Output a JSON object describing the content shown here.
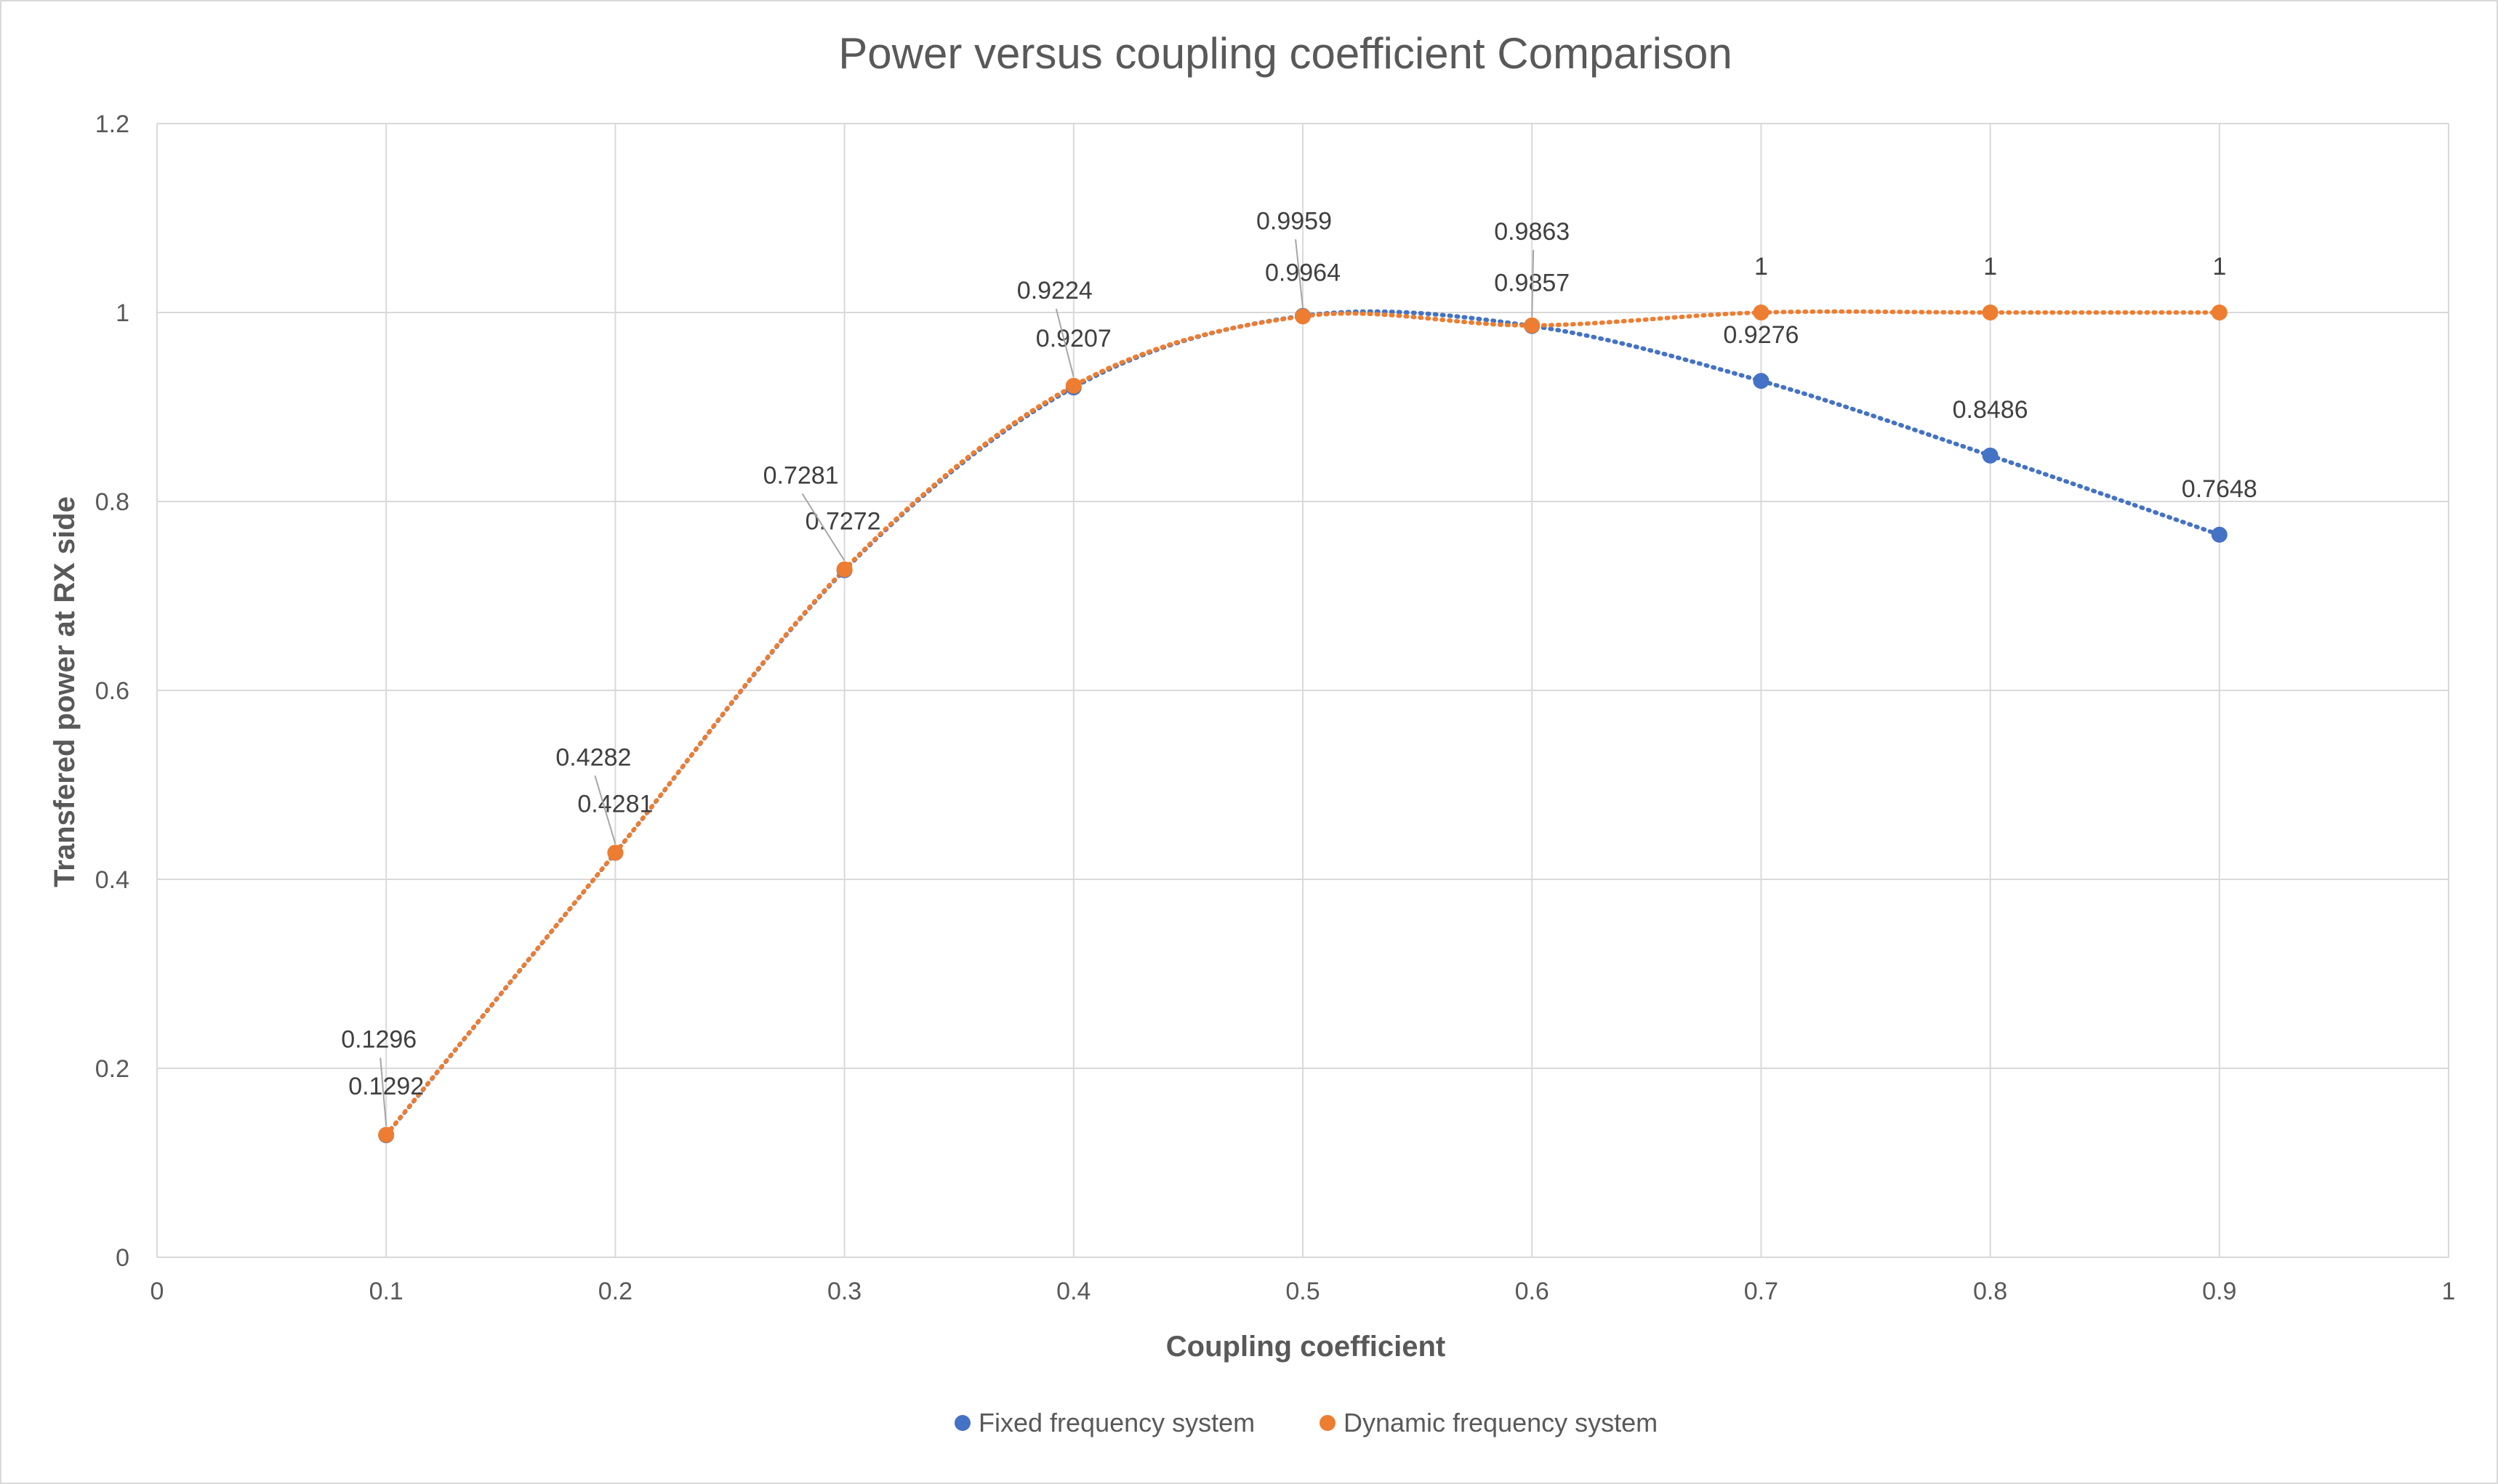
{
  "chart_data": {
    "type": "scatter",
    "title": "Power versus coupling coefficient Comparison",
    "xlabel": "Coupling coefficient",
    "ylabel": "Transfered power at RX side",
    "xlim": [
      0,
      1
    ],
    "ylim": [
      0,
      1.2
    ],
    "x_ticks": [
      "0",
      "0.1",
      "0.2",
      "0.3",
      "0.4",
      "0.5",
      "0.6",
      "0.7",
      "0.8",
      "0.9",
      "1"
    ],
    "y_ticks": [
      "0",
      "0.2",
      "0.4",
      "0.6",
      "0.8",
      "1",
      "1.2"
    ],
    "grid": true,
    "legend_position": "bottom",
    "series": [
      {
        "name": "Fixed frequency system",
        "color": "#4472c4",
        "line_style": "dotted-smooth",
        "x": [
          0.1,
          0.2,
          0.3,
          0.4,
          0.5,
          0.6,
          0.7,
          0.8,
          0.9
        ],
        "y": [
          0.1292,
          0.4281,
          0.7272,
          0.9207,
          0.9964,
          0.9857,
          0.9276,
          0.8486,
          0.7648
        ],
        "labels": [
          "0.1292",
          "0.4281",
          "0.7272",
          "0.9207",
          "0.9964",
          "0.9857",
          "0.9276",
          "0.8486",
          "0.7648"
        ]
      },
      {
        "name": "Dynamic frequency system",
        "color": "#ed7d31",
        "line_style": "dotted-smooth",
        "x": [
          0.1,
          0.2,
          0.3,
          0.4,
          0.5,
          0.6,
          0.7,
          0.8,
          0.9
        ],
        "y": [
          0.1296,
          0.4282,
          0.7281,
          0.9224,
          0.9959,
          0.9863,
          1,
          1,
          1
        ],
        "labels": [
          "0.1296",
          "0.4282",
          "0.7281",
          "0.9224",
          "0.9959",
          "0.9863",
          "1",
          "1",
          "1"
        ]
      }
    ]
  }
}
